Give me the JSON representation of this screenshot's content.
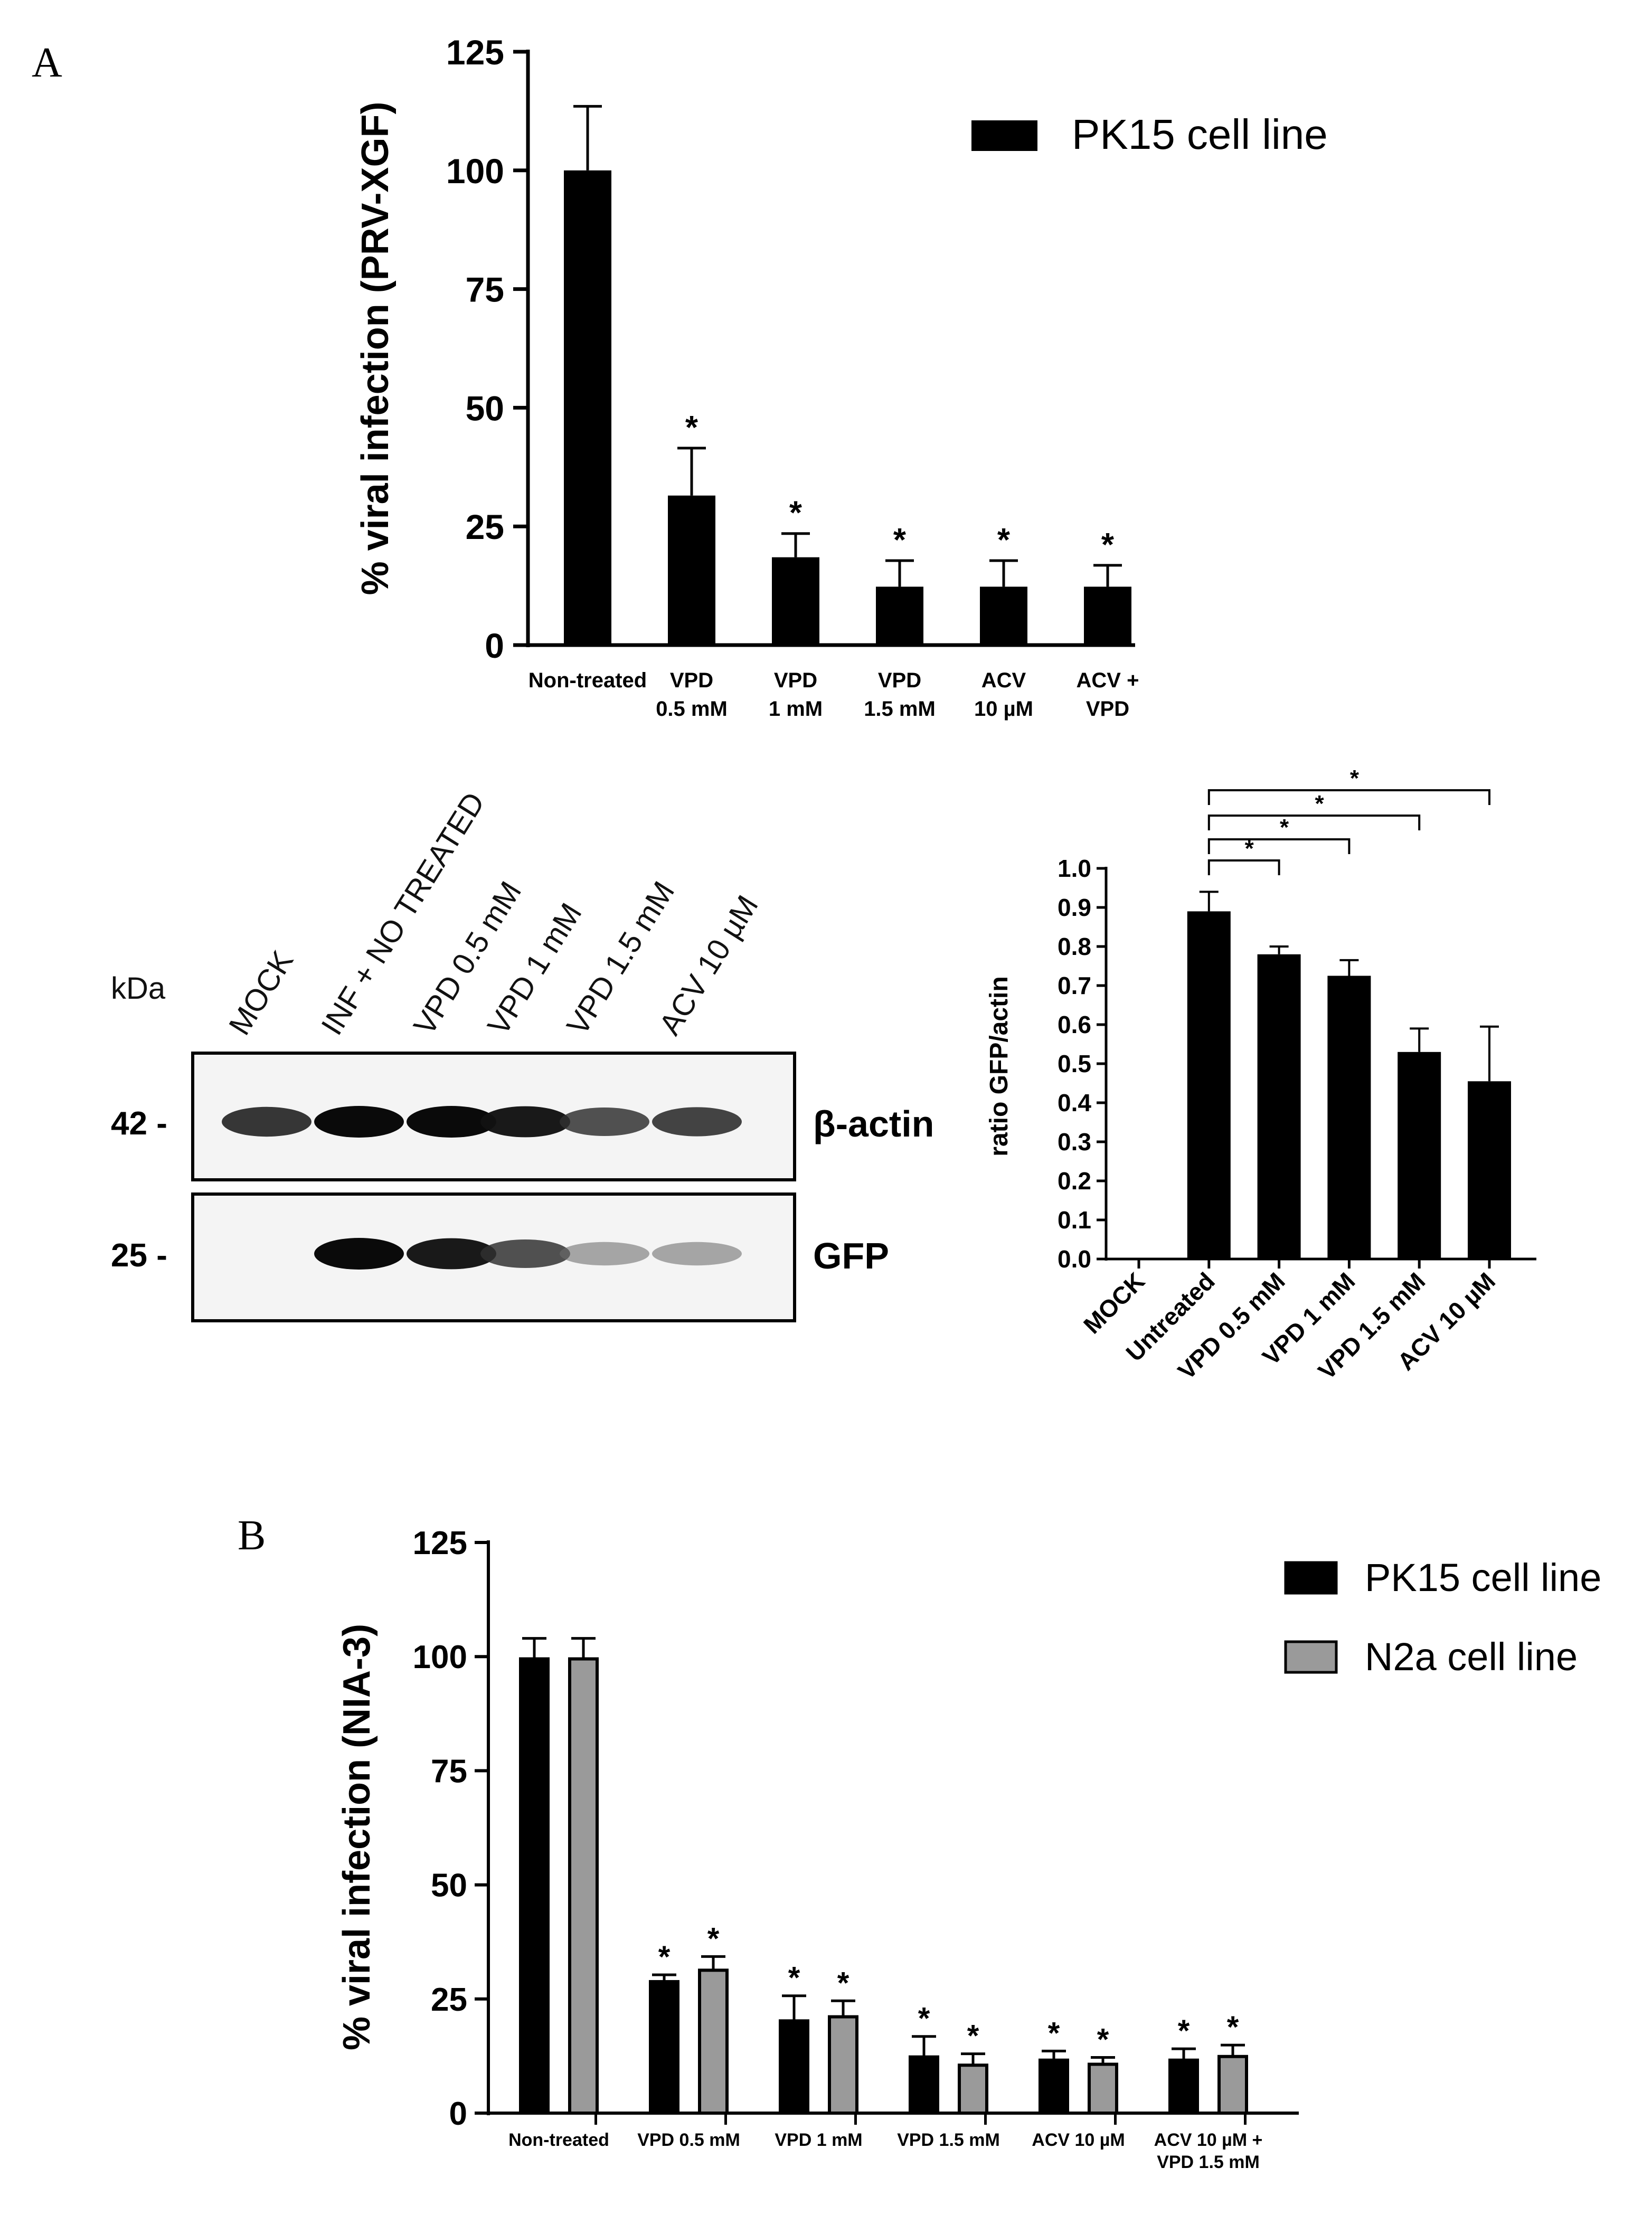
{
  "panel_labels": {
    "a": "A",
    "b": "B"
  },
  "chart_data": [
    {
      "id": "chartA",
      "type": "bar",
      "ylabel": "% viral infection (PRV-XGF)",
      "xlabel": "",
      "ylim": [
        0,
        125
      ],
      "yticks": [
        0,
        25,
        50,
        75,
        100,
        125
      ],
      "categories": [
        [
          "Non-treated"
        ],
        [
          "VPD",
          "0.5 mM"
        ],
        [
          "VPD",
          "1 mM"
        ],
        [
          "VPD",
          "1.5 mM"
        ],
        [
          "ACV",
          "10 µM"
        ],
        [
          "ACV +",
          "VPD"
        ]
      ],
      "series": [
        {
          "name": "PK15 cell line",
          "color": "#000000",
          "values": [
            100,
            31.5,
            18.5,
            12.3,
            12.3,
            12.3
          ],
          "errors": [
            13.5,
            10,
            5,
            5.5,
            5.5,
            4.5
          ],
          "significance": [
            "",
            "*",
            "*",
            "*",
            "*",
            "*"
          ]
        }
      ],
      "legend_position": "top-right",
      "grid": false
    },
    {
      "id": "chartRatio",
      "type": "bar",
      "ylabel": "ratio GFP/actin",
      "xlabel": "",
      "ylim": [
        0,
        1.0
      ],
      "yticks": [
        0.0,
        0.1,
        0.2,
        0.3,
        0.4,
        0.5,
        0.6,
        0.7,
        0.8,
        0.9,
        1.0
      ],
      "categories": [
        "MOCK",
        "Untreated",
        "VPD 0.5 mM",
        "VPD 1 mM",
        "VPD 1.5 mM",
        "ACV 10 µM"
      ],
      "series": [
        {
          "name": "",
          "color": "#000000",
          "values": [
            0,
            0.89,
            0.78,
            0.725,
            0.53,
            0.455
          ],
          "errors": [
            0,
            0.05,
            0.02,
            0.04,
            0.06,
            0.14
          ]
        }
      ],
      "brackets": [
        {
          "from": 1,
          "to": 2,
          "label": "*"
        },
        {
          "from": 1,
          "to": 3,
          "label": "*"
        },
        {
          "from": 1,
          "to": 4,
          "label": "*"
        },
        {
          "from": 1,
          "to": 5,
          "label": "*"
        }
      ],
      "grid": false
    },
    {
      "id": "chartB",
      "type": "bar",
      "ylabel": "% viral infection (NIA-3)",
      "xlabel": "",
      "ylim": [
        0,
        125
      ],
      "yticks": [
        0,
        25,
        50,
        75,
        100,
        125
      ],
      "categories": [
        [
          "Non-treated"
        ],
        [
          "VPD 0.5 mM"
        ],
        [
          "VPD 1 mM"
        ],
        [
          "VPD 1.5 mM"
        ],
        [
          "ACV 10 µM"
        ],
        [
          "ACV 10 µM +",
          "VPD 1.5 mM"
        ]
      ],
      "series": [
        {
          "name": "PK15 cell line",
          "color": "#000000",
          "values": [
            99.5,
            28.8,
            20.2,
            12.3,
            11.6,
            11.6
          ],
          "errors": [
            4.5,
            1.5,
            5.5,
            4.5,
            2,
            2.5
          ],
          "significance": [
            "",
            "*",
            "*",
            "*",
            "*",
            "*"
          ]
        },
        {
          "name": "N2a cell line",
          "color": "#9a9a9a",
          "values": [
            99.5,
            31.3,
            21.1,
            10.5,
            10.7,
            12.4
          ],
          "errors": [
            4.5,
            3,
            3.5,
            2.5,
            1.5,
            2.5
          ],
          "significance": [
            "",
            "*",
            "*",
            "*",
            "*",
            "*"
          ]
        }
      ],
      "legend_position": "top-right",
      "grid": false
    }
  ],
  "blot": {
    "unit_label": "kDa",
    "lanes": [
      "MOCK",
      "INF + NO TREATED",
      "VPD 0.5 mM",
      "VPD 1 mM",
      "VPD 1.5 mM",
      "ACV 10 µM"
    ],
    "bands": [
      {
        "marker": "42 -",
        "label": "β-actin",
        "intensities": [
          0.85,
          1.0,
          1.0,
          0.95,
          0.75,
          0.8
        ]
      },
      {
        "marker": "25 -",
        "label": "GFP",
        "intensities": [
          0,
          1.0,
          0.95,
          0.75,
          0.35,
          0.35
        ]
      }
    ]
  }
}
